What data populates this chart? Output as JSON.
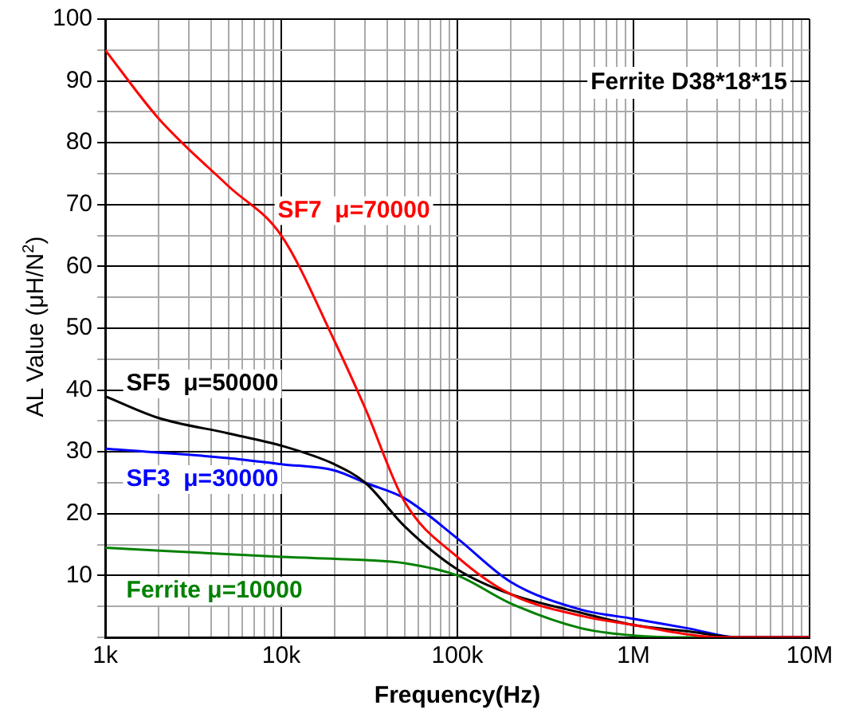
{
  "chart_data": {
    "type": "line",
    "xlabel": "Frequency(Hz)",
    "ylabel": "AL Value (μH/N$^{2}$)",
    "log": "x",
    "grid": true,
    "legend": false,
    "marker": "none",
    "line_style": "solid",
    "xlim": [
      1000,
      10000000
    ],
    "ylim": [
      0,
      100
    ],
    "xticks": [
      {
        "value": 1000,
        "label": "1k"
      },
      {
        "value": 2000,
        "label": null
      },
      {
        "value": 3000,
        "label": null
      },
      {
        "value": 4000,
        "label": null
      },
      {
        "value": 5000,
        "label": null
      },
      {
        "value": 6000,
        "label": null
      },
      {
        "value": 7000,
        "label": null
      },
      {
        "value": 8000,
        "label": null
      },
      {
        "value": 9000,
        "label": null
      },
      {
        "value": 10000,
        "label": "10k"
      },
      {
        "value": 20000,
        "label": null
      },
      {
        "value": 30000,
        "label": null
      },
      {
        "value": 40000,
        "label": null
      },
      {
        "value": 50000,
        "label": null
      },
      {
        "value": 60000,
        "label": null
      },
      {
        "value": 70000,
        "label": null
      },
      {
        "value": 80000,
        "label": null
      },
      {
        "value": 90000,
        "label": null
      },
      {
        "value": 100000,
        "label": "100k"
      },
      {
        "value": 200000,
        "label": null
      },
      {
        "value": 300000,
        "label": null
      },
      {
        "value": 400000,
        "label": null
      },
      {
        "value": 500000,
        "label": null
      },
      {
        "value": 600000,
        "label": null
      },
      {
        "value": 700000,
        "label": null
      },
      {
        "value": 800000,
        "label": null
      },
      {
        "value": 900000,
        "label": null
      },
      {
        "value": 1000000,
        "label": "1M"
      },
      {
        "value": 2000000,
        "label": null
      },
      {
        "value": 3000000,
        "label": null
      },
      {
        "value": 4000000,
        "label": null
      },
      {
        "value": 5000000,
        "label": null
      },
      {
        "value": 6000000,
        "label": null
      },
      {
        "value": 7000000,
        "label": null
      },
      {
        "value": 8000000,
        "label": null
      },
      {
        "value": 9000000,
        "label": null
      },
      {
        "value": 10000000,
        "label": "10M"
      }
    ],
    "yticks": [
      {
        "value": 0,
        "label": null
      },
      {
        "value": 5,
        "label": null
      },
      10,
      {
        "value": 15,
        "label": null
      },
      20,
      {
        "value": 25,
        "label": null
      },
      30,
      {
        "value": 35,
        "label": null
      },
      40,
      {
        "value": 45,
        "label": null
      },
      50,
      {
        "value": 55,
        "label": null
      },
      60,
      {
        "value": 65,
        "label": null
      },
      70,
      {
        "value": 75,
        "label": null
      },
      80,
      {
        "value": 85,
        "label": null
      },
      90,
      {
        "value": 95,
        "label": null
      },
      100
    ],
    "annotations": [
      "Ferrite D38*18*15"
    ],
    "series": [
      {
        "name": "SF7  μ=70000",
        "color": "#ff0000",
        "x": [
          1000,
          2000,
          5000,
          10000,
          20000,
          30000,
          50000,
          100000,
          200000,
          500000,
          1000000,
          2000000,
          3000000,
          10000000
        ],
        "values": [
          95,
          84,
          73,
          65,
          48,
          37,
          22,
          13,
          7,
          3.5,
          2,
          0.5,
          0,
          0
        ]
      },
      {
        "name": "SF5  μ=50000",
        "color": "#000000",
        "x": [
          1000,
          2000,
          5000,
          10000,
          20000,
          30000,
          50000,
          100000,
          200000,
          500000,
          1000000,
          2000000,
          4000000,
          10000000
        ],
        "values": [
          39,
          35.5,
          33,
          31,
          28,
          25,
          18,
          11,
          7,
          4,
          2,
          1,
          0,
          0
        ]
      },
      {
        "name": "SF3  μ=30000",
        "color": "#0000ff",
        "x": [
          1000,
          5000,
          10000,
          20000,
          30000,
          50000,
          100000,
          200000,
          500000,
          1000000,
          2000000,
          4000000,
          10000000
        ],
        "values": [
          30.5,
          29,
          28,
          27,
          25,
          22.5,
          16,
          9,
          4.5,
          3,
          1.5,
          0,
          0
        ]
      },
      {
        "name": "Ferrite μ=10000",
        "color": "#008000",
        "x": [
          1000,
          10000,
          30000,
          50000,
          100000,
          200000,
          500000,
          1000000,
          2000000,
          10000000
        ],
        "values": [
          14.5,
          13,
          12.5,
          12,
          10,
          5.5,
          1.5,
          0.3,
          0,
          0
        ]
      }
    ]
  }
}
